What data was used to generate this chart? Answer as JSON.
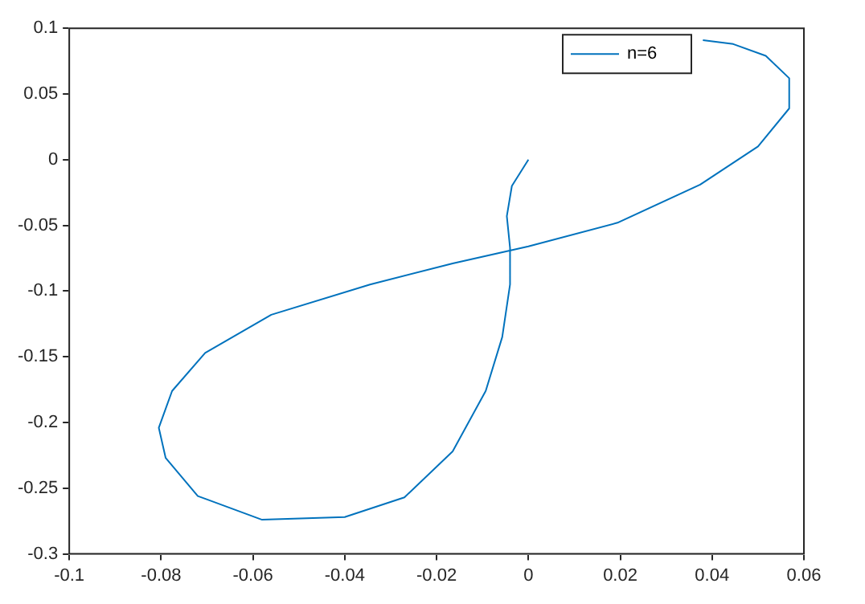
{
  "chart_data": {
    "type": "line",
    "legend": "top right",
    "grid": false,
    "marker": "none",
    "line_style": "solid",
    "xlim": [
      -0.1,
      0.06
    ],
    "xticks": [
      -0.1,
      -0.08,
      -0.06,
      -0.04,
      -0.02,
      0,
      0.02,
      0.04,
      0.06
    ],
    "ylim": [
      -0.3,
      0.1
    ],
    "yticks": [
      -0.3,
      -0.25,
      -0.2,
      -0.15,
      -0.1,
      -0.05,
      0,
      0.05,
      0.1
    ],
    "series": [
      {
        "name": "n=6",
        "color": "#0072bd",
        "x": [
          0,
          -0.0036,
          -0.0047,
          -0.004,
          -0.004,
          -0.0057,
          -0.0093,
          -0.0165,
          -0.027,
          -0.04,
          -0.058,
          -0.072,
          -0.079,
          -0.0805,
          -0.0776,
          -0.0704,
          -0.056,
          -0.0345,
          -0.0165,
          0,
          0.0194,
          0.0374,
          0.05,
          0.0568,
          0.0568,
          0.0517,
          0.0446,
          0.038
        ],
        "values": [
          0,
          -0.02,
          -0.043,
          -0.067,
          -0.095,
          -0.135,
          -0.176,
          -0.222,
          -0.257,
          -0.272,
          -0.274,
          -0.256,
          -0.227,
          -0.204,
          -0.176,
          -0.147,
          -0.118,
          -0.095,
          -0.079,
          -0.066,
          -0.048,
          -0.019,
          0.01,
          0.039,
          0.062,
          0.079,
          0.088,
          0.091
        ]
      }
    ]
  }
}
